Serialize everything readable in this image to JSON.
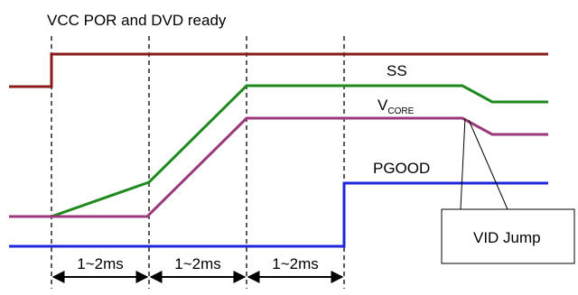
{
  "title": "VCC POR and DVD ready",
  "signals": {
    "vcc": {
      "color": "#8b1a1a"
    },
    "ss": {
      "label": "SS",
      "color": "#1e8a1e"
    },
    "vcore": {
      "label_main": "V",
      "label_sub": "CORE",
      "color": "#9b3a7a"
    },
    "pgood": {
      "label": "PGOOD",
      "color": "#1e28d8"
    }
  },
  "intervals": [
    "1~2ms",
    "1~2ms",
    "1~2ms"
  ],
  "callout": {
    "label": "VID Jump"
  }
}
